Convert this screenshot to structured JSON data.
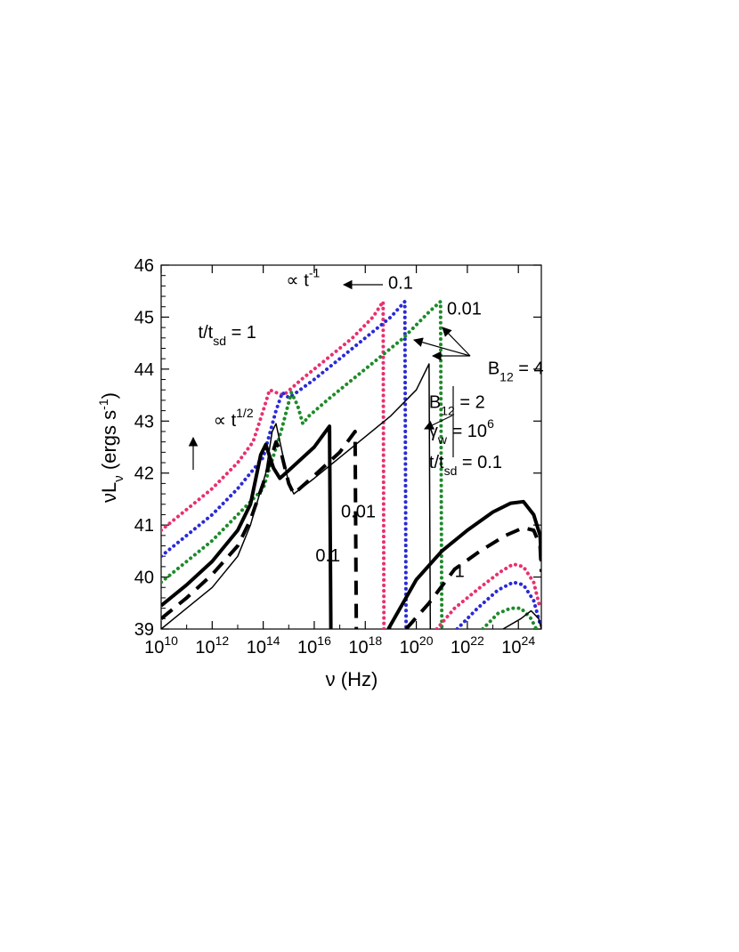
{
  "chart_data": {
    "type": "line",
    "xlabel": "ν (Hz)",
    "ylabel": "νL",
    "ylabel_sub": "ν",
    "ylabel_unit": "(ergs s",
    "ylabel_unit_exp": "-1",
    "ylabel_close": ")",
    "xscale": "log",
    "xlim": [
      10,
      24.9
    ],
    "ylim": [
      39,
      46
    ],
    "x_ticks": [
      {
        "value": 10,
        "base": "10",
        "exp": "10"
      },
      {
        "value": 12,
        "base": "10",
        "exp": "12"
      },
      {
        "value": 14,
        "base": "10",
        "exp": "14"
      },
      {
        "value": 16,
        "base": "10",
        "exp": "16"
      },
      {
        "value": 18,
        "base": "10",
        "exp": "18"
      },
      {
        "value": 20,
        "base": "10",
        "exp": "20"
      },
      {
        "value": 22,
        "base": "10",
        "exp": "22"
      },
      {
        "value": 24,
        "base": "10",
        "exp": "24"
      }
    ],
    "y_ticks": [
      "39",
      "40",
      "41",
      "42",
      "43",
      "44",
      "45",
      "46"
    ],
    "grid": false,
    "series": [
      {
        "id": "b4-t1",
        "color": "#e8306e",
        "style": "dotted",
        "width": 4,
        "points": [
          [
            10,
            40.9
          ],
          [
            11,
            41.3
          ],
          [
            12,
            41.7
          ],
          [
            13,
            42.2
          ],
          [
            13.6,
            42.6
          ],
          [
            14,
            43.2
          ],
          [
            14.25,
            43.6
          ],
          [
            14.5,
            43.55
          ],
          [
            14.8,
            43.5
          ],
          [
            15.5,
            43.8
          ],
          [
            16.5,
            44.2
          ],
          [
            17.5,
            44.6
          ],
          [
            18.3,
            45
          ],
          [
            18.7,
            45.3
          ],
          [
            18.73,
            39
          ]
        ]
      },
      {
        "id": "b4-t0.1",
        "color": "#2a2ad6",
        "style": "dotted",
        "width": 4,
        "points": [
          [
            10,
            40.4
          ],
          [
            11,
            40.8
          ],
          [
            12,
            41.2
          ],
          [
            13,
            41.7
          ],
          [
            14,
            42.3
          ],
          [
            14.5,
            43.2
          ],
          [
            14.75,
            43.55
          ],
          [
            15,
            43.45
          ],
          [
            15.3,
            43.55
          ],
          [
            16,
            43.8
          ],
          [
            17,
            44.2
          ],
          [
            18,
            44.6
          ],
          [
            19,
            45
          ],
          [
            19.55,
            45.3
          ],
          [
            19.6,
            39
          ]
        ]
      },
      {
        "id": "b4-t0.01",
        "color": "#1e8a2a",
        "style": "dotted",
        "width": 4,
        "points": [
          [
            10,
            39.9
          ],
          [
            11,
            40.3
          ],
          [
            12,
            40.7
          ],
          [
            13,
            41.2
          ],
          [
            14,
            41.7
          ],
          [
            14.7,
            42.8
          ],
          [
            15.1,
            43.55
          ],
          [
            15.35,
            43.3
          ],
          [
            15.55,
            42.95
          ],
          [
            15.8,
            43.1
          ],
          [
            16.5,
            43.4
          ],
          [
            17.5,
            43.8
          ],
          [
            18.5,
            44.2
          ],
          [
            19.5,
            44.6
          ],
          [
            20.5,
            45.1
          ],
          [
            20.95,
            45.3
          ],
          [
            21,
            39
          ]
        ]
      },
      {
        "id": "b2-t1",
        "color": "#000000",
        "style": "solid",
        "width": 4,
        "points": [
          [
            10,
            39.45
          ],
          [
            11,
            39.85
          ],
          [
            12,
            40.3
          ],
          [
            13,
            40.9
          ],
          [
            13.5,
            41.4
          ],
          [
            13.9,
            42.35
          ],
          [
            14.1,
            42.55
          ],
          [
            14.4,
            42.1
          ],
          [
            14.65,
            41.9
          ],
          [
            15,
            42.05
          ],
          [
            16,
            42.5
          ],
          [
            16.6,
            42.9
          ],
          [
            16.65,
            39
          ]
        ]
      },
      {
        "id": "b2-t0.1",
        "color": "#000000",
        "style": "dashed",
        "width": 4,
        "points": [
          [
            10,
            39.2
          ],
          [
            11,
            39.6
          ],
          [
            12,
            40.05
          ],
          [
            13,
            40.6
          ],
          [
            13.5,
            41.1
          ],
          [
            14,
            41.8
          ],
          [
            14.5,
            42.6
          ],
          [
            14.7,
            42.4
          ],
          [
            15,
            41.8
          ],
          [
            15.2,
            41.6
          ],
          [
            16,
            41.95
          ],
          [
            17,
            42.4
          ],
          [
            17.6,
            42.8
          ],
          [
            17.65,
            39
          ]
        ]
      },
      {
        "id": "b2-t0.01",
        "color": "#000000",
        "style": "solid",
        "width": 1.5,
        "points": [
          [
            10,
            39
          ],
          [
            11,
            39.4
          ],
          [
            12,
            39.8
          ],
          [
            13,
            40.4
          ],
          [
            13.5,
            41
          ],
          [
            14.1,
            42
          ],
          [
            14.35,
            42.8
          ],
          [
            14.5,
            42.95
          ],
          [
            14.7,
            42.5
          ],
          [
            15,
            41.8
          ],
          [
            15.2,
            41.6
          ],
          [
            16,
            41.9
          ],
          [
            17,
            42.3
          ],
          [
            18,
            42.7
          ],
          [
            19,
            43.1
          ],
          [
            20,
            43.6
          ],
          [
            20.5,
            44.1
          ],
          [
            20.55,
            39
          ]
        ]
      },
      {
        "id": "hi-b2-t1",
        "color": "#000000",
        "style": "solid",
        "width": 4,
        "points": [
          [
            18.9,
            39
          ],
          [
            20,
            39.95
          ],
          [
            21,
            40.5
          ],
          [
            22,
            40.9
          ],
          [
            23,
            41.25
          ],
          [
            23.7,
            41.42
          ],
          [
            24.2,
            41.45
          ],
          [
            24.6,
            41.2
          ],
          [
            24.85,
            40.8
          ],
          [
            24.9,
            40.3
          ]
        ]
      },
      {
        "id": "hi-b2-t0.1",
        "color": "#000000",
        "style": "dashed",
        "width": 4,
        "points": [
          [
            19.6,
            39
          ],
          [
            20.5,
            39.5
          ],
          [
            21.5,
            40.15
          ],
          [
            22.5,
            40.5
          ],
          [
            23.5,
            40.8
          ],
          [
            24.2,
            40.95
          ],
          [
            24.6,
            40.9
          ],
          [
            24.85,
            40.6
          ],
          [
            24.9,
            40.1
          ]
        ]
      },
      {
        "id": "hi-b4-t1",
        "color": "#e8306e",
        "style": "dotted",
        "width": 4,
        "points": [
          [
            20.8,
            39
          ],
          [
            21.5,
            39.4
          ],
          [
            22.5,
            39.8
          ],
          [
            23.3,
            40.1
          ],
          [
            23.8,
            40.25
          ],
          [
            24.2,
            40.2
          ],
          [
            24.6,
            39.9
          ],
          [
            24.85,
            39.4
          ]
        ]
      },
      {
        "id": "hi-b4-t0.1",
        "color": "#2a2ad6",
        "style": "dotted",
        "width": 4,
        "points": [
          [
            21.6,
            39
          ],
          [
            22.4,
            39.4
          ],
          [
            23.2,
            39.75
          ],
          [
            23.8,
            39.9
          ],
          [
            24.2,
            39.85
          ],
          [
            24.6,
            39.55
          ],
          [
            24.85,
            39.1
          ]
        ]
      },
      {
        "id": "hi-b4-t0.01",
        "color": "#1e8a2a",
        "style": "dotted",
        "width": 4,
        "points": [
          [
            22.6,
            39
          ],
          [
            23.2,
            39.3
          ],
          [
            23.7,
            39.4
          ],
          [
            24.1,
            39.4
          ],
          [
            24.5,
            39.2
          ],
          [
            24.7,
            39
          ]
        ]
      },
      {
        "id": "hi-b2-t0.01",
        "color": "#000000",
        "style": "solid",
        "width": 1.5,
        "points": [
          [
            23.4,
            39
          ],
          [
            24.1,
            39.2
          ],
          [
            24.5,
            39.35
          ],
          [
            24.8,
            39.2
          ],
          [
            24.9,
            39
          ]
        ]
      }
    ],
    "annotations": [
      {
        "text": "t/t",
        "sub": "sd",
        "tail": " = 1",
        "x": 11.45,
        "y": 44.6
      },
      {
        "text": "∝ t",
        "sup": "-1",
        "tail": "",
        "x": 14.9,
        "y": 45.6
      },
      {
        "text": "0.1",
        "sub": "",
        "tail": "",
        "x": 18.9,
        "y": 45.55
      },
      {
        "text": "0.01",
        "sub": "",
        "tail": "",
        "x": 21.2,
        "y": 45.05
      },
      {
        "text": "B",
        "sub": "12",
        "tail": " = 4",
        "x": 22.8,
        "y": 43.9
      },
      {
        "text": "∝ t",
        "sup": "1/2",
        "tail": "",
        "x": 12.05,
        "y": 42.9
      },
      {
        "text": "B",
        "sub": "12",
        "tail": " = 2",
        "x": 20.5,
        "y": 43.25
      },
      {
        "text": "γ",
        "sub": "w",
        "tail": " = 10",
        "tail_sup": "6",
        "x": 20.5,
        "y": 42.7
      },
      {
        "text": "t/t",
        "sub": "sd",
        "tail": " = 0.1",
        "x": 20.5,
        "y": 42.1
      },
      {
        "text": "0.01",
        "sub": "",
        "tail": "",
        "x": 17.05,
        "y": 41.15
      },
      {
        "text": "0.1",
        "sub": "",
        "tail": "",
        "x": 16.05,
        "y": 40.3
      },
      {
        "text": "1",
        "sub": "",
        "tail": "",
        "x": 21.5,
        "y": 40.0
      }
    ]
  }
}
